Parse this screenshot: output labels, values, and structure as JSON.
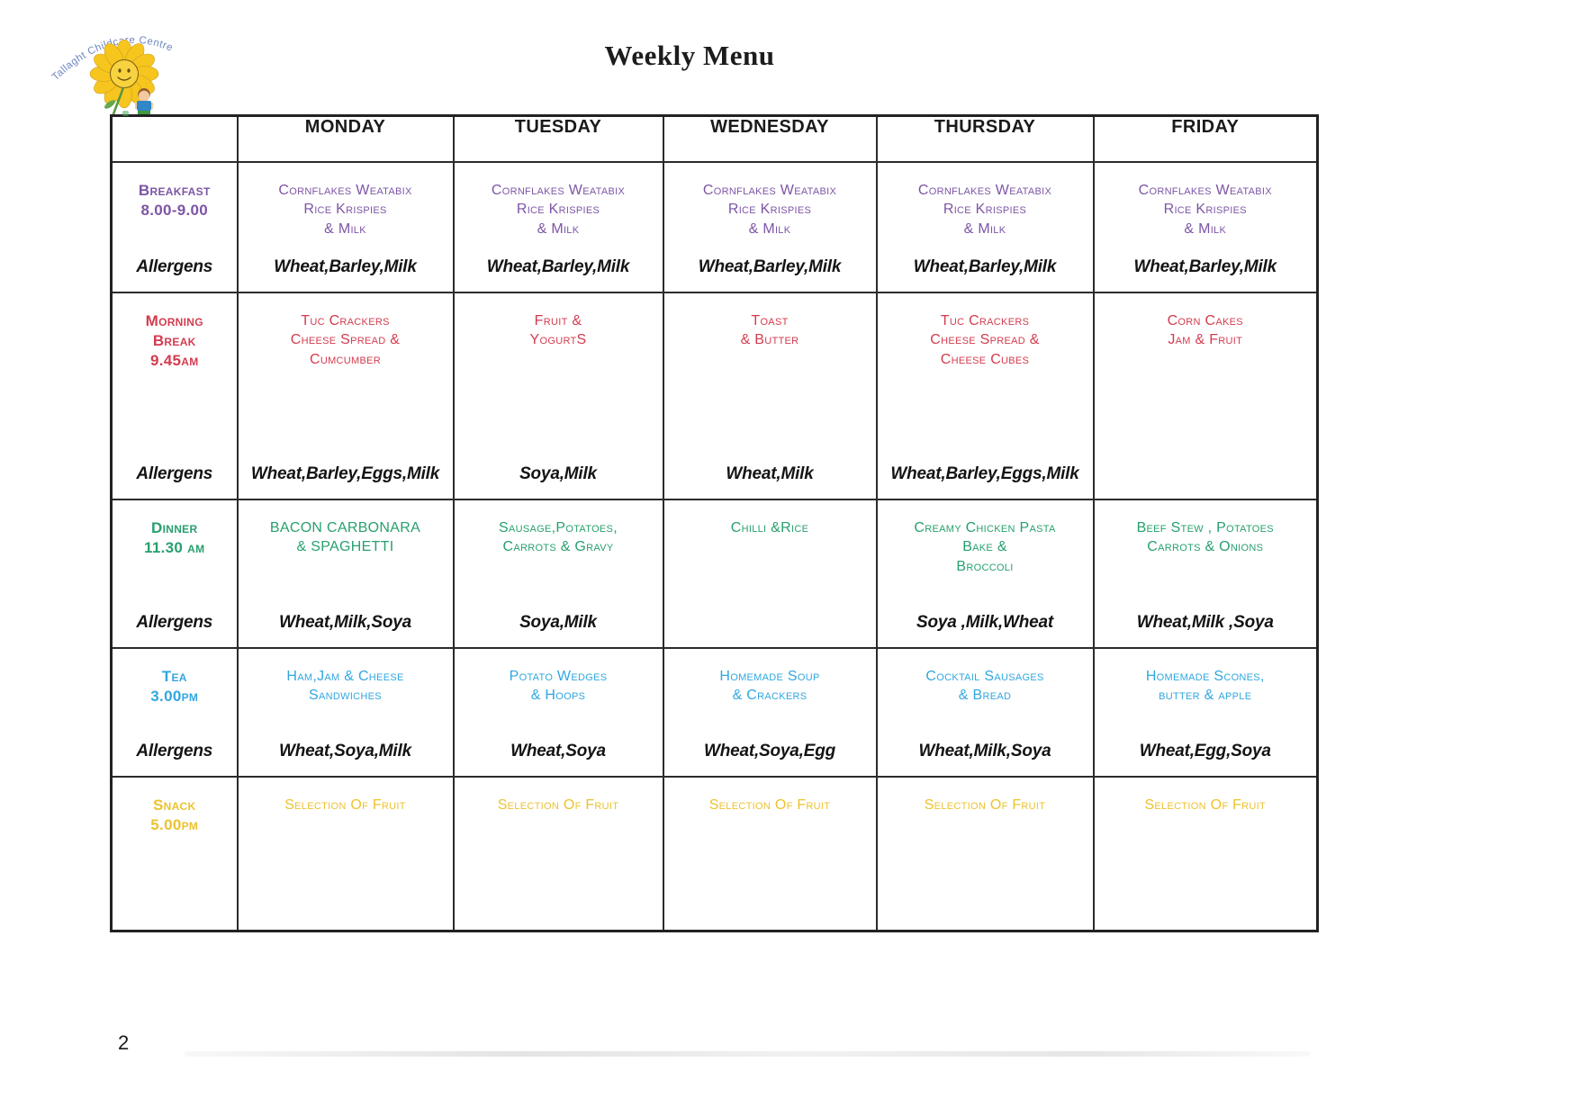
{
  "page": {
    "title": "Weekly Menu",
    "page_number": "2"
  },
  "logo": {
    "arc_text": "Tallaght Childcare Centre"
  },
  "table": {
    "day_headers": [
      "MONDAY",
      "TUESDAY",
      "WEDNESDAY",
      "THURSDAY",
      "FRIDAY"
    ],
    "allergens_label": "Allergens",
    "rows": [
      {
        "id": "breakfast",
        "label_lines": [
          "Breakfast",
          "8.00-9.00"
        ],
        "color": "#7d55a6",
        "has_allergens": true,
        "cells": [
          {
            "lines": [
              "Cornflakes Weatabix",
              "Rice Krispies",
              "& Milk"
            ],
            "allergens": "Wheat,Barley,Milk"
          },
          {
            "lines": [
              "Cornflakes Weatabix",
              "Rice Krispies",
              "& Milk"
            ],
            "allergens": "Wheat,Barley,Milk"
          },
          {
            "lines": [
              "Cornflakes Weatabix",
              "Rice Krispies",
              "& Milk"
            ],
            "allergens": "Wheat,Barley,Milk"
          },
          {
            "lines": [
              "Cornflakes Weatabix",
              "Rice Krispies",
              "& Milk"
            ],
            "allergens": "Wheat,Barley,Milk"
          },
          {
            "lines": [
              "Cornflakes Weatabix",
              "Rice Krispies",
              "& Milk"
            ],
            "allergens": "Wheat,Barley,Milk"
          }
        ]
      },
      {
        "id": "morning-break",
        "label_lines": [
          "Morning",
          "Break",
          "9.45am"
        ],
        "color": "#d33c4f",
        "has_allergens": true,
        "cells": [
          {
            "lines": [
              "Tuc Crackers",
              "Cheese Spread &",
              "Cumcumber"
            ],
            "allergens": "Wheat,Barley,Eggs,Milk"
          },
          {
            "lines": [
              "Fruit &",
              "YogurtS"
            ],
            "allergens": "Soya,Milk"
          },
          {
            "lines": [
              "Toast",
              "& Butter"
            ],
            "allergens": "Wheat,Milk"
          },
          {
            "lines": [
              "Tuc Crackers",
              "Cheese Spread &",
              "Cheese Cubes"
            ],
            "allergens": "Wheat,Barley,Eggs,Milk"
          },
          {
            "lines": [
              "Corn Cakes",
              "Jam & Fruit"
            ],
            "allergens": ""
          }
        ]
      },
      {
        "id": "dinner",
        "label_lines": [
          "Dinner",
          "11.30 am"
        ],
        "color": "#28a06e",
        "has_allergens": true,
        "cells": [
          {
            "lines": [
              "BACON CARBONARA",
              "& SPAGHETTI"
            ],
            "allergens": "Wheat,Milk,Soya"
          },
          {
            "lines": [
              "Sausage,Potatoes,",
              "Carrots & Gravy"
            ],
            "allergens": "Soya,Milk"
          },
          {
            "lines": [
              "Chilli &Rice"
            ],
            "allergens": ""
          },
          {
            "lines": [
              "Creamy Chicken Pasta",
              "Bake &",
              "Broccoli"
            ],
            "allergens": "Soya ,Milk,Wheat"
          },
          {
            "lines": [
              "Beef Stew , Potatoes",
              "Carrots & Onions"
            ],
            "allergens": "Wheat,Milk ,Soya"
          }
        ]
      },
      {
        "id": "tea",
        "label_lines": [
          "Tea",
          "3.00pm"
        ],
        "color": "#31a7e0",
        "has_allergens": true,
        "cells": [
          {
            "lines": [
              "Ham,Jam & Cheese",
              "Sandwiches"
            ],
            "allergens": "Wheat,Soya,Milk"
          },
          {
            "lines": [
              "Potato Wedges",
              "& Hoops"
            ],
            "allergens": "Wheat,Soya"
          },
          {
            "lines": [
              "Homemade Soup",
              "& Crackers"
            ],
            "allergens": "Wheat,Soya,Egg"
          },
          {
            "lines": [
              "Cocktail Sausages",
              "& Bread"
            ],
            "allergens": "Wheat,Milk,Soya"
          },
          {
            "lines": [
              "Homemade Scones,",
              "butter & apple"
            ],
            "allergens": "Wheat,Egg,Soya"
          }
        ]
      },
      {
        "id": "snack",
        "label_lines": [
          "Snack",
          "5.00pm"
        ],
        "color": "#ecc22f",
        "has_allergens": false,
        "cells": [
          {
            "lines": [
              "Selection Of Fruit"
            ],
            "allergens": ""
          },
          {
            "lines": [
              "Selection Of Fruit"
            ],
            "allergens": ""
          },
          {
            "lines": [
              "Selection Of Fruit"
            ],
            "allergens": ""
          },
          {
            "lines": [
              "Selection Of Fruit"
            ],
            "allergens": ""
          },
          {
            "lines": [
              "Selection Of Fruit"
            ],
            "allergens": ""
          }
        ]
      }
    ]
  }
}
